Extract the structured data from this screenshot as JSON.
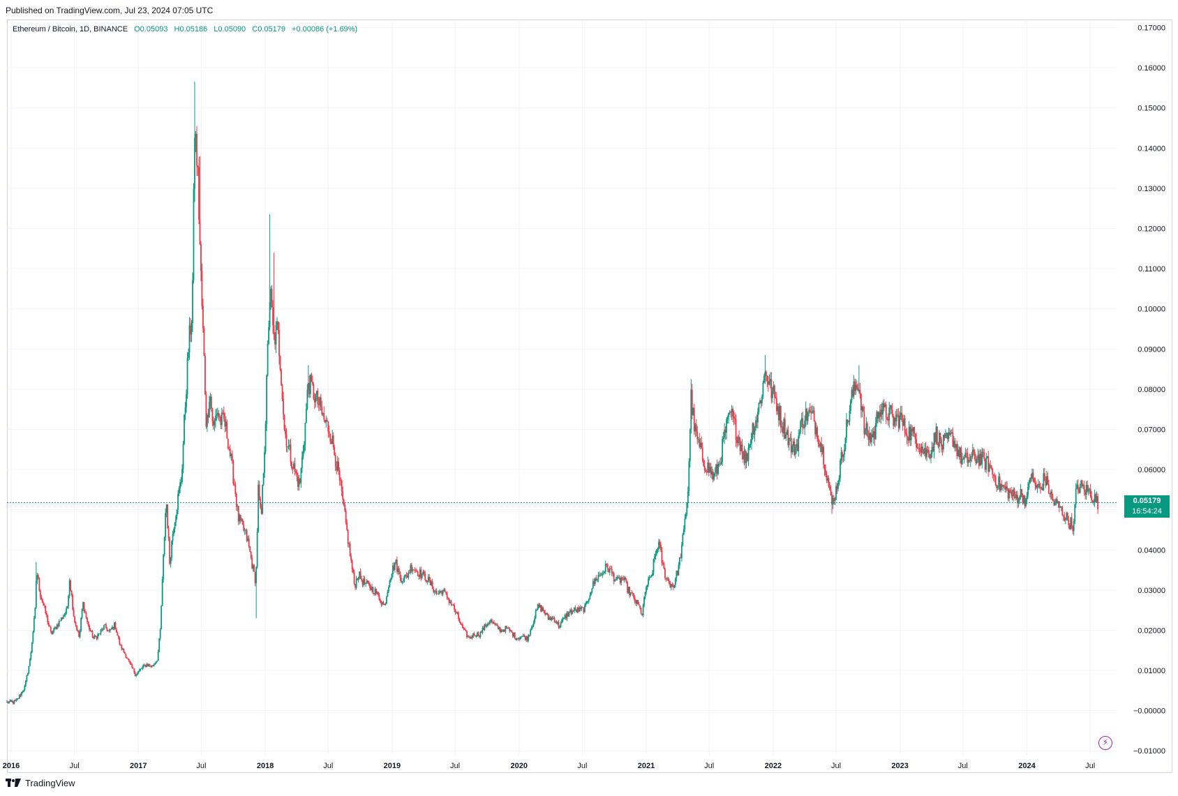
{
  "published": "Published on TradingView.com, Jul 23, 2024 07:05 UTC",
  "legend": {
    "symbol": "Ethereum / Bitcoin, 1D, BINANCE",
    "open": "O0.05093",
    "high": "H0.05186",
    "low": "L0.05090",
    "close": "C0.05179",
    "change": "+0.00086 (+1.69%)"
  },
  "price_tag": {
    "price": "0.05179",
    "countdown": "16:54:24"
  },
  "footer": {
    "brand": "TradingView"
  },
  "icons": {
    "lightning": "lightning-icon",
    "logo": "tradingview-logo-icon"
  },
  "colors": {
    "up": "#089981",
    "down": "#f23645",
    "grid": "#f0f3fa",
    "axis_text": "#131722",
    "last_price_line": "#089981"
  },
  "chart_data": {
    "type": "candlestick",
    "title": "Ethereum / Bitcoin, 1D, BINANCE",
    "symbol": "ETH/BTC",
    "interval": "1D",
    "exchange": "BINANCE",
    "ylim": [
      -0.011,
      0.172
    ],
    "xlim": [
      "2015-12-20",
      "2024-09-15"
    ],
    "y_ticks": [
      "0.17000",
      "0.16000",
      "0.15000",
      "0.14000",
      "0.13000",
      "0.12000",
      "0.11000",
      "0.10000",
      "0.09000",
      "0.08000",
      "0.07000",
      "0.06000",
      "0.05000",
      "0.04000",
      "0.03000",
      "0.02000",
      "0.01000",
      "−0.00000",
      "−0.01000"
    ],
    "y_tick_values": [
      0.17,
      0.16,
      0.15,
      0.14,
      0.13,
      0.12,
      0.11,
      0.1,
      0.09,
      0.08,
      0.07,
      0.06,
      0.05,
      0.04,
      0.03,
      0.02,
      0.01,
      0.0,
      -0.01
    ],
    "x_ticks": [
      {
        "label": "2016",
        "date": "2016-01-01",
        "year": true
      },
      {
        "label": "Jul",
        "date": "2016-07-01",
        "year": false
      },
      {
        "label": "2017",
        "date": "2017-01-01",
        "year": true
      },
      {
        "label": "Jul",
        "date": "2017-07-01",
        "year": false
      },
      {
        "label": "2018",
        "date": "2018-01-01",
        "year": true
      },
      {
        "label": "Jul",
        "date": "2018-07-01",
        "year": false
      },
      {
        "label": "2019",
        "date": "2019-01-01",
        "year": true
      },
      {
        "label": "Jul",
        "date": "2019-07-01",
        "year": false
      },
      {
        "label": "2020",
        "date": "2020-01-01",
        "year": true
      },
      {
        "label": "Jul",
        "date": "2020-07-01",
        "year": false
      },
      {
        "label": "2021",
        "date": "2021-01-01",
        "year": true
      },
      {
        "label": "Jul",
        "date": "2021-07-01",
        "year": false
      },
      {
        "label": "2022",
        "date": "2022-01-01",
        "year": true
      },
      {
        "label": "Jul",
        "date": "2022-07-01",
        "year": false
      },
      {
        "label": "2023",
        "date": "2023-01-01",
        "year": true
      },
      {
        "label": "Jul",
        "date": "2023-07-01",
        "year": false
      },
      {
        "label": "2024",
        "date": "2024-01-01",
        "year": true
      },
      {
        "label": "Jul",
        "date": "2024-07-01",
        "year": false
      }
    ],
    "last_price": 0.05179,
    "price_path": [
      [
        "2015-12-20",
        0.002
      ],
      [
        "2016-01-15",
        0.0022
      ],
      [
        "2016-02-10",
        0.006
      ],
      [
        "2016-02-25",
        0.013
      ],
      [
        "2016-03-10",
        0.025
      ],
      [
        "2016-03-14",
        0.035
      ],
      [
        "2016-03-25",
        0.029
      ],
      [
        "2016-04-10",
        0.024
      ],
      [
        "2016-04-25",
        0.019
      ],
      [
        "2016-05-10",
        0.021
      ],
      [
        "2016-05-25",
        0.023
      ],
      [
        "2016-06-10",
        0.025
      ],
      [
        "2016-06-17",
        0.033
      ],
      [
        "2016-06-30",
        0.023
      ],
      [
        "2016-07-15",
        0.018
      ],
      [
        "2016-07-25",
        0.027
      ],
      [
        "2016-08-10",
        0.021
      ],
      [
        "2016-08-25",
        0.018
      ],
      [
        "2016-09-10",
        0.019
      ],
      [
        "2016-09-25",
        0.021
      ],
      [
        "2016-10-10",
        0.0195
      ],
      [
        "2016-10-25",
        0.0215
      ],
      [
        "2016-11-10",
        0.016
      ],
      [
        "2016-11-25",
        0.014
      ],
      [
        "2016-12-10",
        0.011
      ],
      [
        "2016-12-25",
        0.009
      ],
      [
        "2017-01-10",
        0.0105
      ],
      [
        "2017-01-25",
        0.0115
      ],
      [
        "2017-02-10",
        0.011
      ],
      [
        "2017-02-25",
        0.013
      ],
      [
        "2017-03-05",
        0.02
      ],
      [
        "2017-03-15",
        0.04
      ],
      [
        "2017-03-22",
        0.053
      ],
      [
        "2017-04-01",
        0.037
      ],
      [
        "2017-04-12",
        0.046
      ],
      [
        "2017-04-25",
        0.053
      ],
      [
        "2017-05-05",
        0.058
      ],
      [
        "2017-05-15",
        0.075
      ],
      [
        "2017-05-25",
        0.09
      ],
      [
        "2017-06-05",
        0.1
      ],
      [
        "2017-06-12",
        0.145
      ],
      [
        "2017-06-20",
        0.135
      ],
      [
        "2017-07-01",
        0.105
      ],
      [
        "2017-07-10",
        0.085
      ],
      [
        "2017-07-16",
        0.07
      ],
      [
        "2017-07-25",
        0.08
      ],
      [
        "2017-08-05",
        0.07
      ],
      [
        "2017-08-15",
        0.075
      ],
      [
        "2017-08-25",
        0.072
      ],
      [
        "2017-09-05",
        0.072
      ],
      [
        "2017-09-15",
        0.068
      ],
      [
        "2017-09-25",
        0.062
      ],
      [
        "2017-10-05",
        0.056
      ],
      [
        "2017-10-15",
        0.048
      ],
      [
        "2017-10-25",
        0.046
      ],
      [
        "2017-11-05",
        0.044
      ],
      [
        "2017-11-12",
        0.042
      ],
      [
        "2017-11-25",
        0.036
      ],
      [
        "2017-12-05",
        0.032
      ],
      [
        "2017-12-12",
        0.055
      ],
      [
        "2017-12-20",
        0.047
      ],
      [
        "2018-01-01",
        0.07
      ],
      [
        "2018-01-10",
        0.095
      ],
      [
        "2018-01-15",
        0.105
      ],
      [
        "2018-01-25",
        0.092
      ],
      [
        "2018-02-05",
        0.095
      ],
      [
        "2018-02-15",
        0.085
      ],
      [
        "2018-02-25",
        0.07
      ],
      [
        "2018-03-10",
        0.065
      ],
      [
        "2018-03-25",
        0.06
      ],
      [
        "2018-04-10",
        0.056
      ],
      [
        "2018-04-25",
        0.07
      ],
      [
        "2018-05-05",
        0.082
      ],
      [
        "2018-05-15",
        0.08
      ],
      [
        "2018-05-25",
        0.078
      ],
      [
        "2018-06-05",
        0.076
      ],
      [
        "2018-06-20",
        0.072
      ],
      [
        "2018-07-05",
        0.07
      ],
      [
        "2018-07-20",
        0.064
      ],
      [
        "2018-08-05",
        0.056
      ],
      [
        "2018-08-20",
        0.047
      ],
      [
        "2018-09-05",
        0.037
      ],
      [
        "2018-09-15",
        0.031
      ],
      [
        "2018-09-25",
        0.034
      ],
      [
        "2018-10-10",
        0.032
      ],
      [
        "2018-10-25",
        0.031
      ],
      [
        "2018-11-10",
        0.03
      ],
      [
        "2018-11-25",
        0.028
      ],
      [
        "2018-12-10",
        0.026
      ],
      [
        "2018-12-25",
        0.033
      ],
      [
        "2019-01-10",
        0.037
      ],
      [
        "2019-01-25",
        0.033
      ],
      [
        "2019-02-10",
        0.033
      ],
      [
        "2019-02-25",
        0.036
      ],
      [
        "2019-03-10",
        0.035
      ],
      [
        "2019-03-25",
        0.034
      ],
      [
        "2019-04-10",
        0.033
      ],
      [
        "2019-04-25",
        0.031
      ],
      [
        "2019-05-10",
        0.029
      ],
      [
        "2019-05-25",
        0.03
      ],
      [
        "2019-06-10",
        0.028
      ],
      [
        "2019-06-25",
        0.026
      ],
      [
        "2019-07-10",
        0.023
      ],
      [
        "2019-07-25",
        0.02
      ],
      [
        "2019-08-10",
        0.018
      ],
      [
        "2019-08-25",
        0.019
      ],
      [
        "2019-09-10",
        0.019
      ],
      [
        "2019-09-25",
        0.021
      ],
      [
        "2019-10-10",
        0.0225
      ],
      [
        "2019-10-25",
        0.021
      ],
      [
        "2019-11-10",
        0.02
      ],
      [
        "2019-11-25",
        0.0205
      ],
      [
        "2019-12-10",
        0.0195
      ],
      [
        "2019-12-25",
        0.018
      ],
      [
        "2020-01-10",
        0.0185
      ],
      [
        "2020-01-25",
        0.018
      ],
      [
        "2020-02-10",
        0.022
      ],
      [
        "2020-02-25",
        0.026
      ],
      [
        "2020-03-10",
        0.025
      ],
      [
        "2020-03-25",
        0.023
      ],
      [
        "2020-04-10",
        0.023
      ],
      [
        "2020-04-25",
        0.021
      ],
      [
        "2020-05-10",
        0.023
      ],
      [
        "2020-05-25",
        0.0245
      ],
      [
        "2020-06-10",
        0.025
      ],
      [
        "2020-06-25",
        0.025
      ],
      [
        "2020-07-10",
        0.0255
      ],
      [
        "2020-07-25",
        0.03
      ],
      [
        "2020-08-10",
        0.033
      ],
      [
        "2020-08-25",
        0.034
      ],
      [
        "2020-09-10",
        0.036
      ],
      [
        "2020-09-25",
        0.034
      ],
      [
        "2020-10-10",
        0.032
      ],
      [
        "2020-10-25",
        0.033
      ],
      [
        "2020-11-10",
        0.03
      ],
      [
        "2020-11-25",
        0.028
      ],
      [
        "2020-12-10",
        0.026
      ],
      [
        "2020-12-20",
        0.024
      ],
      [
        "2021-01-01",
        0.031
      ],
      [
        "2021-01-15",
        0.033
      ],
      [
        "2021-01-25",
        0.038
      ],
      [
        "2021-02-05",
        0.042
      ],
      [
        "2021-02-20",
        0.035
      ],
      [
        "2021-03-05",
        0.032
      ],
      [
        "2021-03-20",
        0.031
      ],
      [
        "2021-04-05",
        0.036
      ],
      [
        "2021-04-20",
        0.045
      ],
      [
        "2021-05-01",
        0.055
      ],
      [
        "2021-05-10",
        0.078
      ],
      [
        "2021-05-20",
        0.07
      ],
      [
        "2021-06-01",
        0.066
      ],
      [
        "2021-06-15",
        0.062
      ],
      [
        "2021-07-01",
        0.06
      ],
      [
        "2021-07-15",
        0.058
      ],
      [
        "2021-08-01",
        0.062
      ],
      [
        "2021-08-15",
        0.069
      ],
      [
        "2021-09-01",
        0.074
      ],
      [
        "2021-09-15",
        0.07
      ],
      [
        "2021-10-01",
        0.066
      ],
      [
        "2021-10-15",
        0.062
      ],
      [
        "2021-11-01",
        0.07
      ],
      [
        "2021-11-15",
        0.073
      ],
      [
        "2021-12-01",
        0.08
      ],
      [
        "2021-12-10",
        0.085
      ],
      [
        "2021-12-25",
        0.08
      ],
      [
        "2022-01-10",
        0.077
      ],
      [
        "2022-01-25",
        0.072
      ],
      [
        "2022-02-10",
        0.069
      ],
      [
        "2022-02-25",
        0.065
      ],
      [
        "2022-03-10",
        0.066
      ],
      [
        "2022-03-25",
        0.072
      ],
      [
        "2022-04-10",
        0.074
      ],
      [
        "2022-04-25",
        0.073
      ],
      [
        "2022-05-10",
        0.069
      ],
      [
        "2022-05-25",
        0.064
      ],
      [
        "2022-06-10",
        0.056
      ],
      [
        "2022-06-18",
        0.051
      ],
      [
        "2022-07-01",
        0.055
      ],
      [
        "2022-07-15",
        0.062
      ],
      [
        "2022-08-01",
        0.071
      ],
      [
        "2022-08-15",
        0.078
      ],
      [
        "2022-09-01",
        0.082
      ],
      [
        "2022-09-10",
        0.078
      ],
      [
        "2022-09-20",
        0.07
      ],
      [
        "2022-10-05",
        0.068
      ],
      [
        "2022-10-20",
        0.069
      ],
      [
        "2022-11-01",
        0.076
      ],
      [
        "2022-11-15",
        0.074
      ],
      [
        "2022-12-01",
        0.074
      ],
      [
        "2022-12-15",
        0.072
      ],
      [
        "2023-01-01",
        0.073
      ],
      [
        "2023-01-15",
        0.07
      ],
      [
        "2023-02-01",
        0.069
      ],
      [
        "2023-02-15",
        0.068
      ],
      [
        "2023-03-01",
        0.066
      ],
      [
        "2023-03-15",
        0.064
      ],
      [
        "2023-04-01",
        0.065
      ],
      [
        "2023-04-15",
        0.069
      ],
      [
        "2023-05-01",
        0.066
      ],
      [
        "2023-05-15",
        0.067
      ],
      [
        "2023-06-01",
        0.068
      ],
      [
        "2023-06-15",
        0.065
      ],
      [
        "2023-07-01",
        0.062
      ],
      [
        "2023-07-15",
        0.0625
      ],
      [
        "2023-08-01",
        0.063
      ],
      [
        "2023-08-15",
        0.063
      ],
      [
        "2023-09-01",
        0.062
      ],
      [
        "2023-09-15",
        0.061
      ],
      [
        "2023-10-01",
        0.058
      ],
      [
        "2023-10-15",
        0.056
      ],
      [
        "2023-11-01",
        0.055
      ],
      [
        "2023-11-15",
        0.054
      ],
      [
        "2023-12-01",
        0.053
      ],
      [
        "2023-12-15",
        0.054
      ],
      [
        "2024-01-01",
        0.052
      ],
      [
        "2024-01-10",
        0.059
      ],
      [
        "2024-01-25",
        0.056
      ],
      [
        "2024-02-10",
        0.055
      ],
      [
        "2024-02-20",
        0.058
      ],
      [
        "2024-03-01",
        0.056
      ],
      [
        "2024-03-15",
        0.052
      ],
      [
        "2024-04-01",
        0.051
      ],
      [
        "2024-04-15",
        0.049
      ],
      [
        "2024-05-01",
        0.047
      ],
      [
        "2024-05-15",
        0.046
      ],
      [
        "2024-05-20",
        0.054
      ],
      [
        "2024-06-01",
        0.056
      ],
      [
        "2024-06-15",
        0.055
      ],
      [
        "2024-07-01",
        0.0545
      ],
      [
        "2024-07-10",
        0.053
      ],
      [
        "2024-07-23",
        0.0518
      ]
    ],
    "spikes": [
      {
        "date": "2016-03-14",
        "high": 0.037
      },
      {
        "date": "2017-06-12",
        "high": 0.1565
      },
      {
        "date": "2017-06-28",
        "high": 0.138
      },
      {
        "date": "2018-01-13",
        "high": 0.1235
      },
      {
        "date": "2018-01-25",
        "high": 0.114
      },
      {
        "date": "2017-12-05",
        "low": 0.023
      },
      {
        "date": "2018-05-05",
        "high": 0.086
      },
      {
        "date": "2021-05-10",
        "high": 0.0825
      },
      {
        "date": "2021-12-10",
        "high": 0.0885
      },
      {
        "date": "2022-09-05",
        "high": 0.086
      },
      {
        "date": "2022-06-18",
        "low": 0.049
      },
      {
        "date": "2024-05-15",
        "low": 0.045
      }
    ]
  }
}
